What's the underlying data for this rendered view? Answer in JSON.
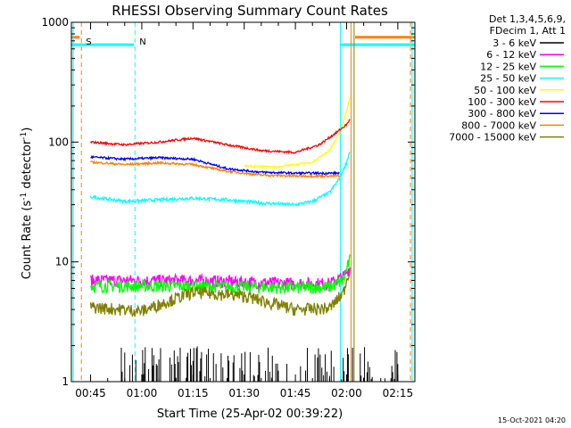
{
  "chart_data": {
    "type": "line",
    "title": "RHESSI Observing Summary Count Rates",
    "xlabel": "Start Time (25-Apr-02 00:39:22)",
    "ylabel": "Count Rate (s",
    "ylabel_sup1": "-1",
    "ylabel_mid": " detector",
    "ylabel_sup2": "-1",
    "ylabel_end": ")",
    "yscale": "log",
    "ylim": [
      1,
      1000
    ],
    "xlim_minutes": [
      39.37,
      140.0
    ],
    "x_ticks": [
      {
        "label": "00:45",
        "minutes": 45
      },
      {
        "label": "01:00",
        "minutes": 60
      },
      {
        "label": "01:15",
        "minutes": 75
      },
      {
        "label": "01:30",
        "minutes": 90
      },
      {
        "label": "01:45",
        "minutes": 105
      },
      {
        "label": "02:00",
        "minutes": 120
      },
      {
        "label": "02:15",
        "minutes": 135
      }
    ],
    "y_ticks": [
      {
        "label": "1",
        "value": 1
      },
      {
        "label": "10",
        "value": 10
      },
      {
        "label": "100",
        "value": 100
      },
      {
        "label": "1000",
        "value": 1000
      }
    ],
    "legend_header": [
      "Det 1,3,4,5,6,9,",
      "FDecim 1, Att 1"
    ],
    "legend_placement": "right",
    "series": [
      {
        "name": "3 - 6 keV",
        "color": "#000000",
        "noise": 0.0,
        "x": [
          54,
          135
        ],
        "y": [
          1,
          1
        ]
      },
      {
        "name": "6 - 12 keV",
        "color": "#ff00ff",
        "noise": 0.12,
        "x": [
          45,
          75,
          105,
          115,
          119,
          121
        ],
        "y": [
          7,
          7,
          6.6,
          6.6,
          7.5,
          9
        ]
      },
      {
        "name": "12 - 25 keV",
        "color": "#00ff00",
        "noise": 0.12,
        "x": [
          45,
          75,
          105,
          115,
          119,
          121
        ],
        "y": [
          6.3,
          6.3,
          6.1,
          6.2,
          7.0,
          10.5
        ]
      },
      {
        "name": "25 - 50 keV",
        "color": "#00ffff",
        "noise": 0.03,
        "x": [
          45,
          55,
          65,
          75,
          85,
          95,
          105,
          110,
          115,
          118,
          120,
          121
        ],
        "y": [
          35,
          32,
          33,
          34,
          33,
          31,
          30,
          32,
          38,
          50,
          68,
          85
        ]
      },
      {
        "name": "50 - 100 keV",
        "color": "#ffff00",
        "noise": 0.02,
        "x": [
          90,
          100,
          110,
          115,
          118,
          120,
          121
        ],
        "y": [
          63,
          62,
          68,
          85,
          120,
          180,
          240
        ]
      },
      {
        "name": "100 - 300 keV",
        "color": "#ff0000",
        "noise": 0.02,
        "x": [
          45,
          55,
          65,
          75,
          85,
          95,
          105,
          112,
          117,
          120,
          121
        ],
        "y": [
          100,
          95,
          100,
          108,
          95,
          85,
          82,
          95,
          120,
          140,
          155
        ]
      },
      {
        "name": "300 - 800 keV",
        "color": "#0000ff",
        "noise": 0.02,
        "x": [
          45,
          55,
          65,
          75,
          85,
          95,
          105,
          115,
          118
        ],
        "y": [
          75,
          72,
          74,
          72,
          60,
          56,
          55,
          55,
          55
        ]
      },
      {
        "name": "800 - 7000 keV",
        "color": "#ff8000",
        "noise": 0.02,
        "x": [
          45,
          55,
          65,
          75,
          85,
          95,
          105,
          115,
          118
        ],
        "y": [
          68,
          65,
          67,
          65,
          57,
          53,
          52,
          52,
          52
        ]
      },
      {
        "name": "7000 - 15000 keV",
        "color": "#808000",
        "noise": 0.12,
        "x": [
          45,
          60,
          75,
          90,
          105,
          115,
          119,
          121
        ],
        "y": [
          4.2,
          3.9,
          5.6,
          5.2,
          4.0,
          4.1,
          5.5,
          9
        ]
      }
    ],
    "markers": [
      {
        "label": "S",
        "color": "#ff8000",
        "line_style": "dashed",
        "line_minutes": 42.3
      },
      {
        "label": "N",
        "color": "#00ffff",
        "line_style": "dashed",
        "line_minutes": 58.0
      }
    ],
    "flag_bars": [
      {
        "color": "#00ffff",
        "value": 650,
        "ranges": [
          [
            39.37,
            57.7
          ],
          [
            118.2,
            140
          ]
        ]
      },
      {
        "color": "#ff8000",
        "value": 750,
        "ranges": [
          [
            39.37,
            41.8
          ],
          [
            122.5,
            140
          ]
        ]
      }
    ],
    "vertical_lines": [
      {
        "color": "#00ffff",
        "minutes": 39.9,
        "style": "solid"
      },
      {
        "color": "#00ffff",
        "minutes": 118.2,
        "style": "solid"
      },
      {
        "color": "#ff8000",
        "minutes": 121.3,
        "style": "solid"
      },
      {
        "color": "#808000",
        "minutes": 122.2,
        "style": "solid"
      },
      {
        "color": "#00ffff",
        "minutes": 139.2,
        "style": "solid"
      },
      {
        "color": "#ff8000",
        "minutes": 138.7,
        "style": "dashed"
      }
    ],
    "footer_timestamp": "15-Oct-2021 04:20"
  }
}
